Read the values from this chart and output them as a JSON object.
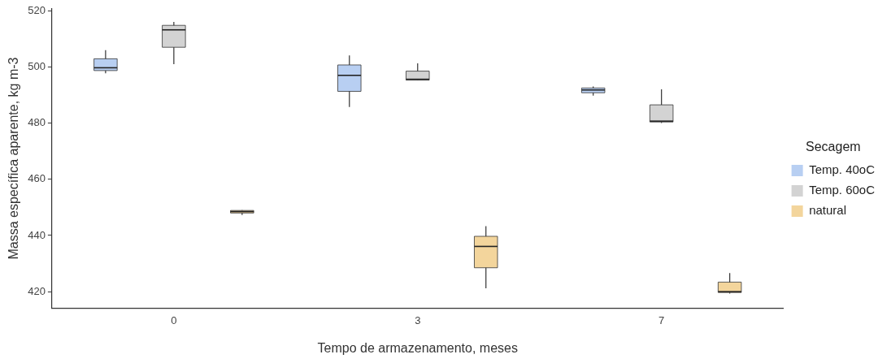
{
  "chart_data": {
    "type": "box",
    "xlabel": "Tempo de armazenamento, meses",
    "ylabel": "Massa específica aparente, kg m-3",
    "legend_title": "Secagem",
    "legend": "right",
    "grid": false,
    "categories": [
      "0",
      "3",
      "7"
    ],
    "ylim": [
      414.2,
      520.7
    ],
    "yticks": [
      420,
      440,
      460,
      480,
      500,
      520
    ],
    "series": [
      {
        "name": "Temp. 40oC",
        "color": "#b8cff2",
        "boxes": [
          {
            "low": 497.7,
            "q1": 498.7,
            "median": 499.7,
            "q3": 502.9,
            "high": 506.0
          },
          {
            "low": 485.7,
            "q1": 491.3,
            "median": 497.0,
            "q3": 500.7,
            "high": 504.1
          },
          {
            "low": 489.8,
            "q1": 490.8,
            "median": 491.8,
            "q3": 492.5,
            "high": 493.0
          }
        ]
      },
      {
        "name": "Temp. 60oC",
        "color": "#d3d3d3",
        "boxes": [
          {
            "low": 501.0,
            "q1": 507.0,
            "median": 513.2,
            "q3": 514.8,
            "high": 516.0
          },
          {
            "low": 495.3,
            "q1": 495.3,
            "median": 495.6,
            "q3": 498.5,
            "high": 501.3
          },
          {
            "low": 480.0,
            "q1": 480.4,
            "median": 480.7,
            "q3": 486.5,
            "high": 492.0
          }
        ]
      },
      {
        "name": "natural",
        "color": "#f3d59c",
        "boxes": [
          {
            "low": 447.3,
            "q1": 448.0,
            "median": 448.5,
            "q3": 448.9,
            "high": 449.0
          },
          {
            "low": 421.2,
            "q1": 428.5,
            "median": 436.1,
            "q3": 439.7,
            "high": 443.3
          },
          {
            "low": 419.3,
            "q1": 419.7,
            "median": 420.0,
            "q3": 423.4,
            "high": 426.6
          }
        ]
      }
    ]
  }
}
